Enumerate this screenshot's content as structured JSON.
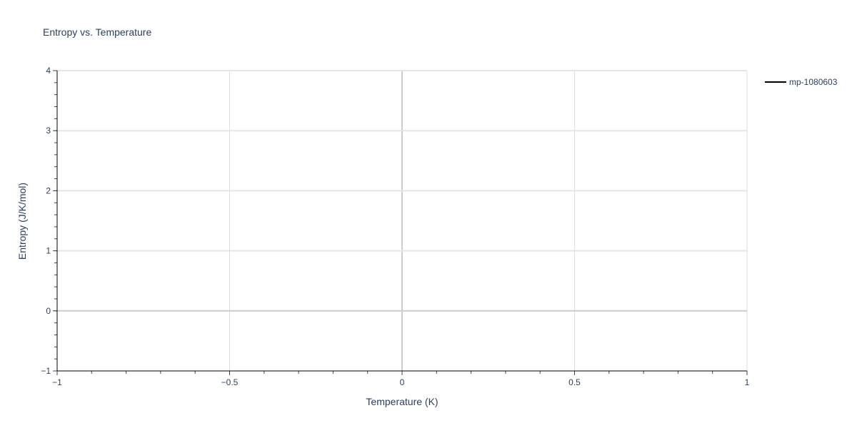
{
  "chart_data": {
    "type": "line",
    "title": "Entropy vs. Temperature",
    "xlabel": "Temperature (K)",
    "ylabel": "Entropy (J/K/mol)",
    "xlim": [
      -1,
      1
    ],
    "ylim": [
      -1,
      4
    ],
    "x_ticks": [
      -1,
      -0.5,
      0,
      0.5,
      1
    ],
    "x_tick_labels": [
      "−1",
      "−0.5",
      "0",
      "0.5",
      "1"
    ],
    "y_ticks": [
      -1,
      0,
      1,
      2,
      3,
      4
    ],
    "y_tick_labels": [
      "−1",
      "0",
      "1",
      "2",
      "3",
      "4"
    ],
    "grid": true,
    "legend_position": "top-right",
    "series": [
      {
        "name": "mp-1080603",
        "color": "#000000",
        "x": [],
        "y": []
      }
    ]
  }
}
